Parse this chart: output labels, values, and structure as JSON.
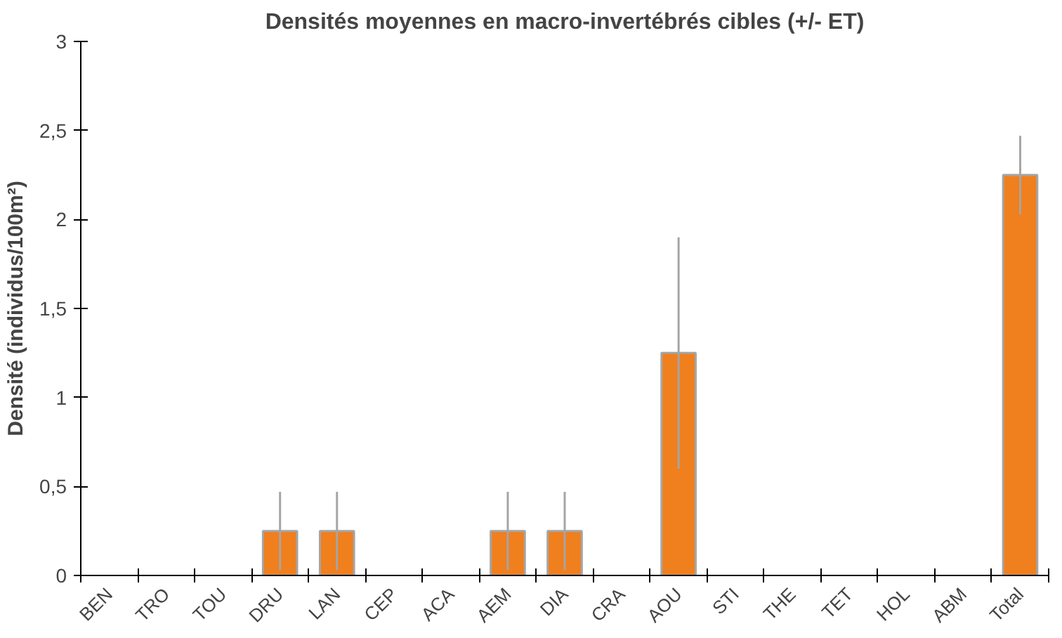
{
  "chart_data": {
    "type": "bar",
    "title": "Densités moyennes en macro-invertébrés cibles (+/- ET)",
    "ylabel": "Densité (individus/100m²)",
    "categories": [
      "BEN",
      "TRO",
      "TOU",
      "DRU",
      "LAN",
      "CEP",
      "ACA",
      "AEM",
      "DIA",
      "CRA",
      "AOU",
      "STI",
      "THE",
      "TET",
      "HOL",
      "ABM",
      "Total"
    ],
    "values": [
      0,
      0,
      0,
      0.25,
      0.25,
      0,
      0,
      0.25,
      0.25,
      0,
      1.25,
      0,
      0,
      0,
      0,
      0,
      2.25
    ],
    "errors": [
      null,
      null,
      null,
      0.22,
      0.22,
      null,
      null,
      0.22,
      0.22,
      null,
      0.65,
      null,
      null,
      null,
      null,
      null,
      0.22
    ],
    "color": "#f07f1e",
    "ylim": [
      0,
      3
    ],
    "yticks": [
      0,
      {
        "value": 0.5,
        "label": "0,5"
      },
      1,
      {
        "value": 1.5,
        "label": "1,5"
      },
      2,
      {
        "value": 2.5,
        "label": "2,5"
      },
      3
    ],
    "grid": false
  }
}
